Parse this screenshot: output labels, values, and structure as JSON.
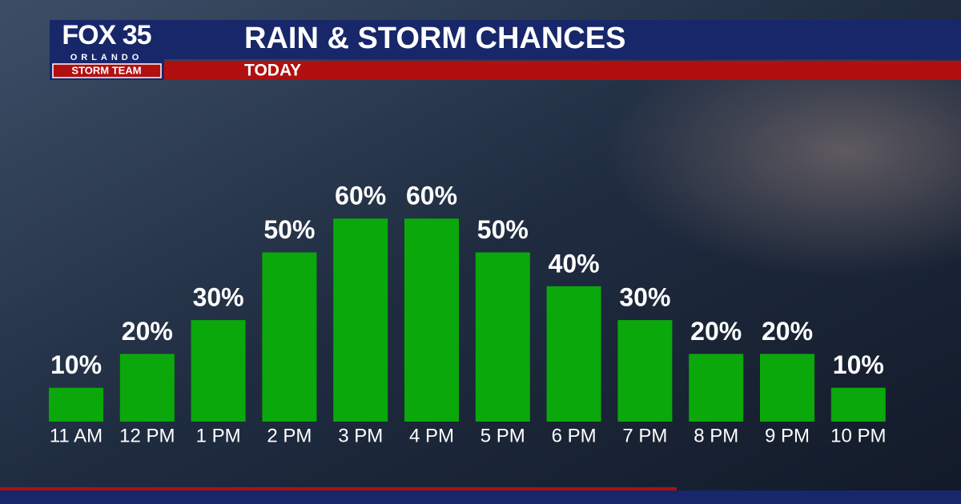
{
  "logo": {
    "brand": "FOX 35",
    "city": "ORLANDO",
    "team": "STORM TEAM"
  },
  "chart_data": {
    "type": "bar",
    "title": "RAIN & STORM CHANCES",
    "subtitle": "TODAY",
    "categories": [
      "11 AM",
      "12 PM",
      "1 PM",
      "2 PM",
      "3 PM",
      "4 PM",
      "5 PM",
      "6 PM",
      "7 PM",
      "8 PM",
      "9 PM",
      "10 PM"
    ],
    "values": [
      10,
      20,
      30,
      50,
      60,
      60,
      50,
      40,
      30,
      20,
      20,
      10
    ],
    "value_labels": [
      "10%",
      "20%",
      "30%",
      "50%",
      "60%",
      "60%",
      "50%",
      "40%",
      "30%",
      "20%",
      "20%",
      "10%"
    ],
    "color": "#0aa80a"
  }
}
